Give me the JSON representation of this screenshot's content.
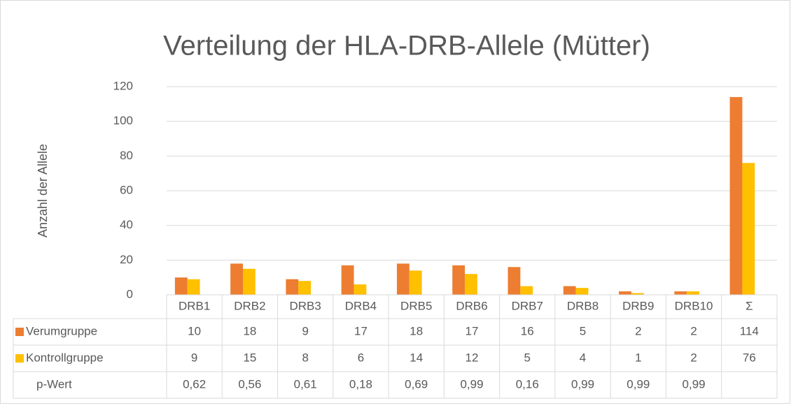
{
  "chart_data": {
    "type": "bar",
    "title": "Verteilung der HLA-DRB-Allele (Mütter)",
    "y_label": "Anzahl der Allele",
    "categories": [
      "DRB1",
      "DRB2",
      "DRB3",
      "DRB4",
      "DRB5",
      "DRB6",
      "DRB7",
      "DRB8",
      "DRB9",
      "DRB10",
      "Σ"
    ],
    "series": [
      {
        "name": "Verumgruppe",
        "color": "#ED7D31",
        "values": [
          10,
          18,
          9,
          17,
          18,
          17,
          16,
          5,
          2,
          2,
          114
        ]
      },
      {
        "name": "Kontrollgruppe",
        "color": "#FFC000",
        "values": [
          9,
          15,
          8,
          6,
          14,
          12,
          5,
          4,
          1,
          2,
          76
        ]
      }
    ],
    "p_value": {
      "name": "p-Wert",
      "values": [
        0.62,
        0.56,
        0.61,
        0.18,
        0.69,
        0.99,
        0.16,
        0.99,
        0.99,
        0.99,
        null
      ],
      "value_labels": [
        "0,62",
        "0,56",
        "0,61",
        "0,18",
        "0,69",
        "0,99",
        "0,16",
        "0,99",
        "0,99",
        "0,99",
        null
      ]
    },
    "ylim": [
      0,
      120
    ],
    "yticks": [
      0,
      20,
      40,
      60,
      80,
      100,
      120
    ],
    "grid": true,
    "data_table": true
  }
}
